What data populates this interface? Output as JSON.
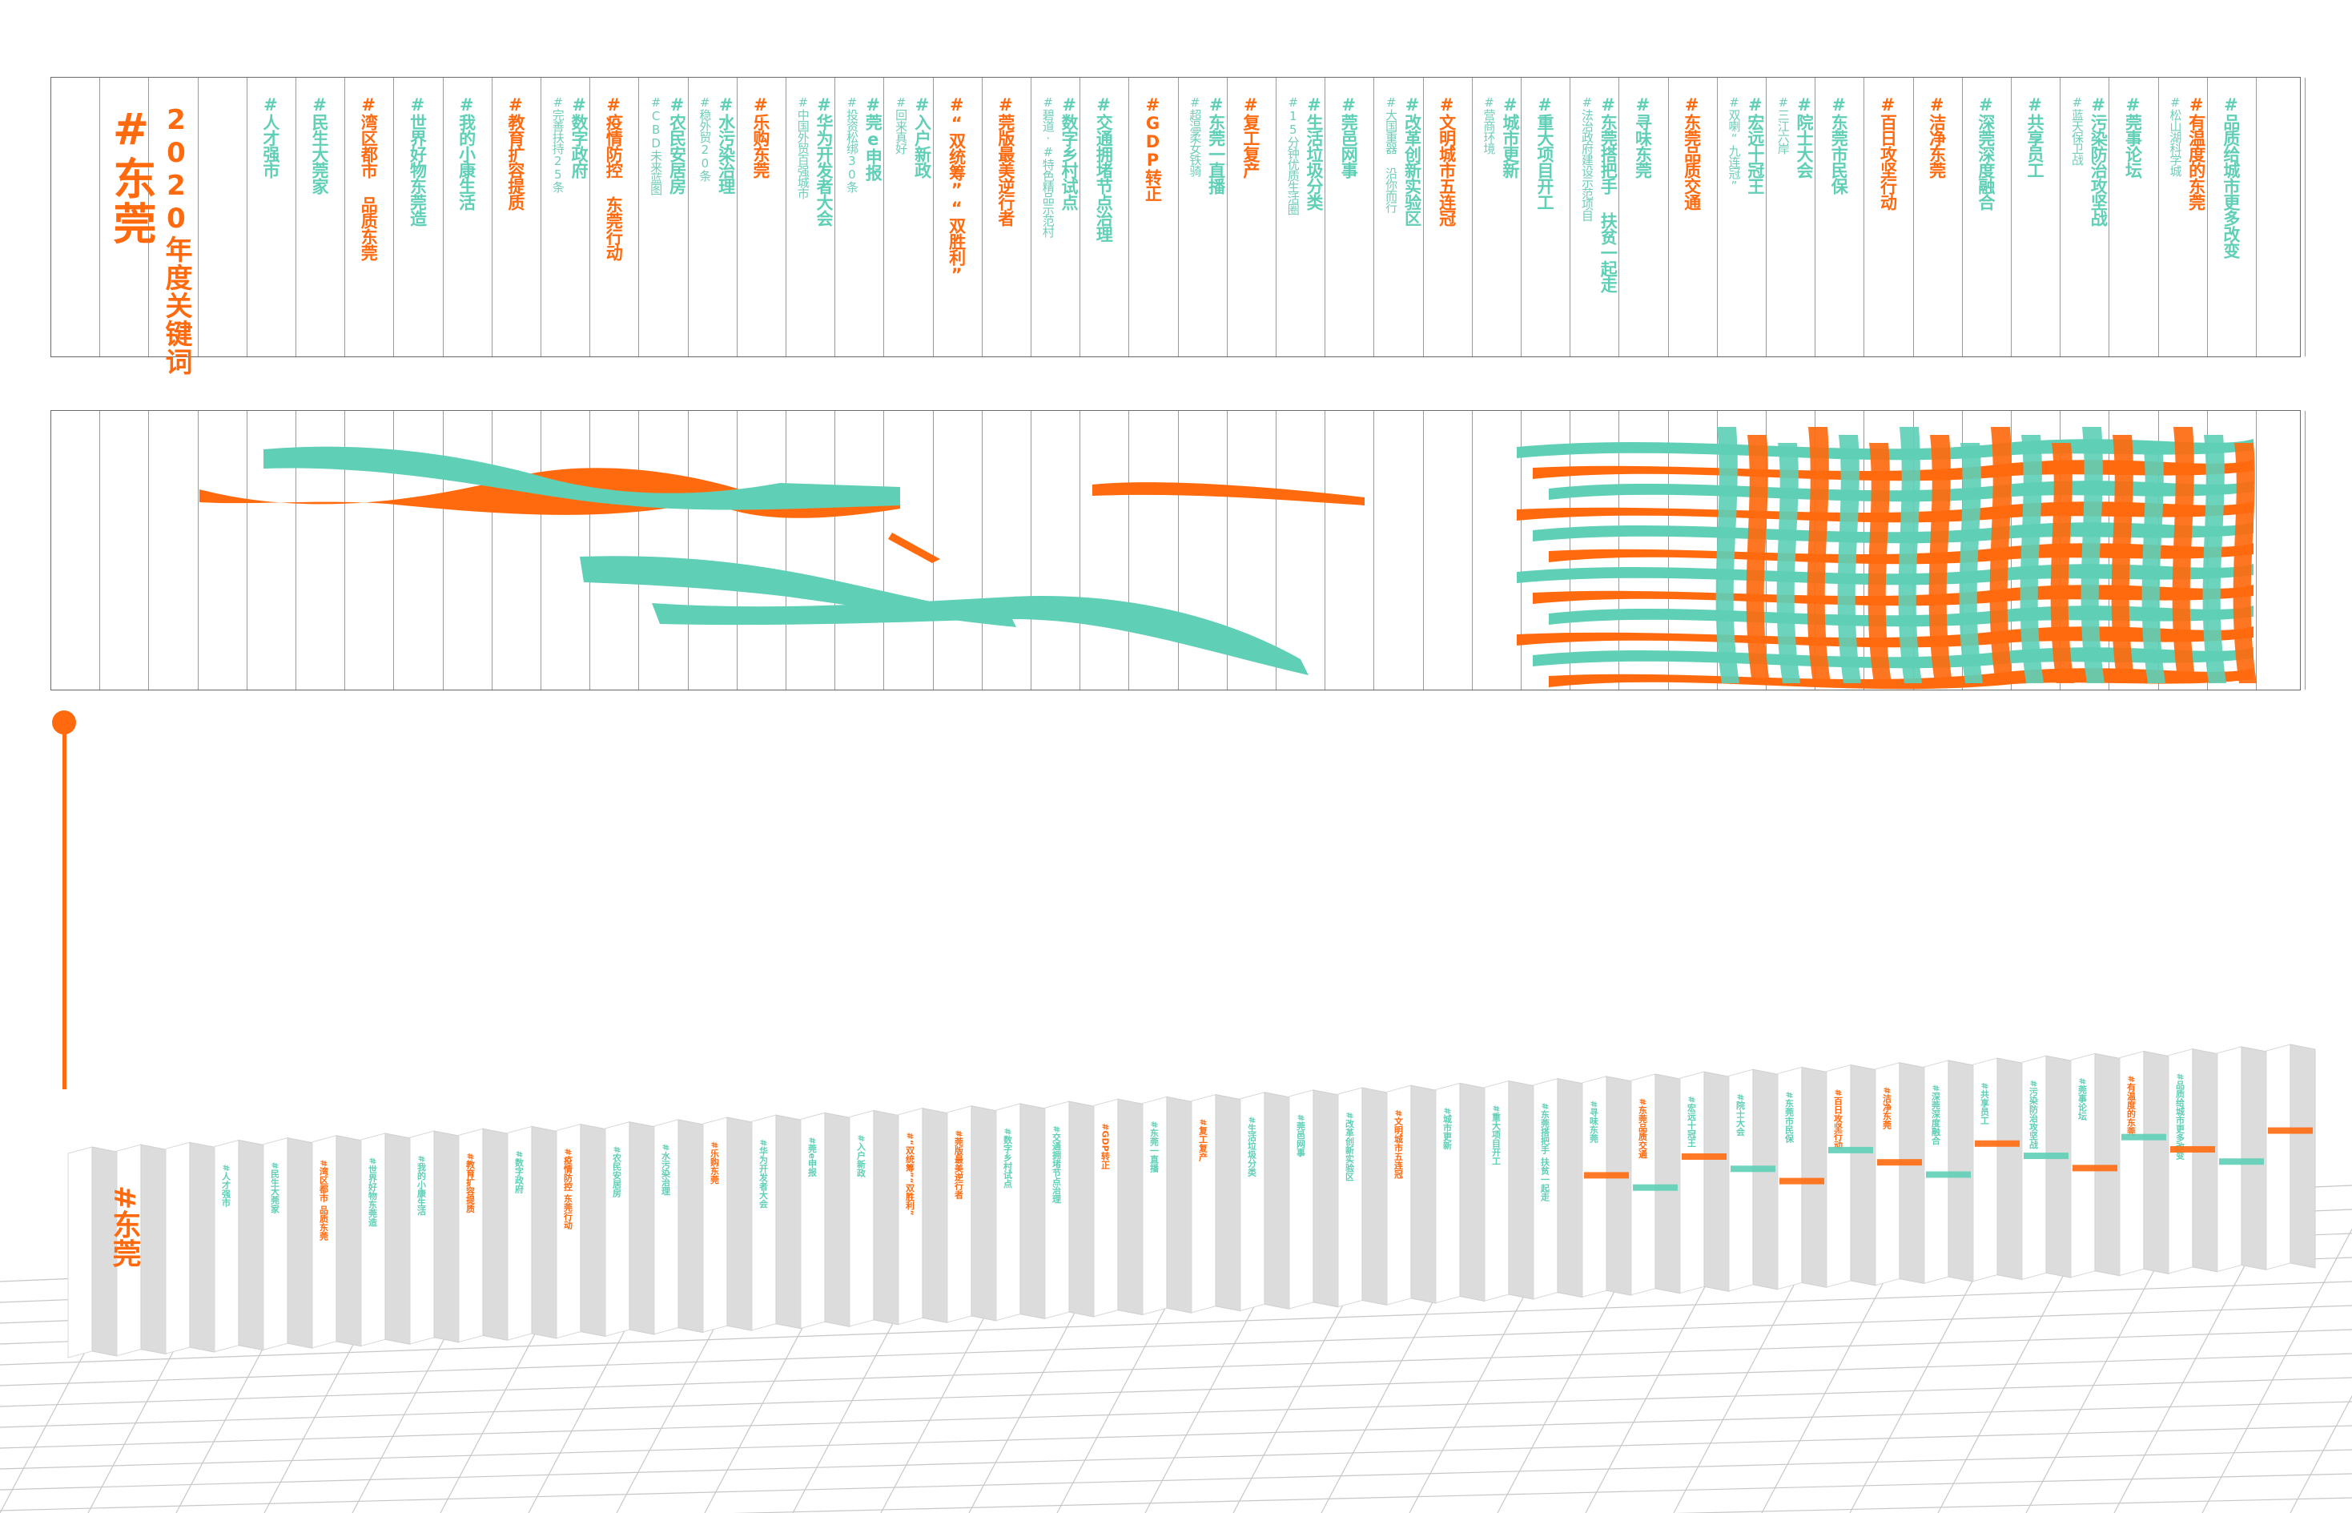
{
  "title": {
    "hash_word": "#东莞",
    "subtitle": "2020年度关键词"
  },
  "keywords": [
    {
      "text": "#人才强市",
      "color": "teal"
    },
    {
      "text": "#民生大莞家",
      "color": "teal"
    },
    {
      "text": "#湾区都市 品质东莞",
      "color": "orange"
    },
    {
      "text": "#世界好物东莞造",
      "color": "teal"
    },
    {
      "text": "#我的小康生活",
      "color": "teal"
    },
    {
      "text": "#教育扩容提质",
      "color": "orange"
    },
    {
      "text": "#数字政府",
      "color": "teal",
      "sub": "#完善扶持25条"
    },
    {
      "text": "#疫情防控 东莞行动",
      "color": "orange"
    },
    {
      "text": "#农民安居房",
      "color": "teal",
      "sub": "#CBD未来蓝图"
    },
    {
      "text": "#水污染治理",
      "color": "teal",
      "sub": "#稳外贸20条"
    },
    {
      "text": "#乐购东莞",
      "color": "orange"
    },
    {
      "text": "#华为开发者大会",
      "color": "teal",
      "sub": "#中国外贸百强城市"
    },
    {
      "text": "#莞e申报",
      "color": "teal",
      "sub": "#投资松绑30条"
    },
    {
      "text": "#入户新政",
      "color": "teal",
      "sub": "#回来真好"
    },
    {
      "text": "#“双统筹”“双胜利”",
      "color": "orange"
    },
    {
      "text": "#莞版最美逆行者",
      "color": "orange"
    },
    {
      "text": "#数字乡村试点",
      "color": "teal",
      "sub": "#碧道·#特色精品示范村"
    },
    {
      "text": "#交通拥堵节点治理",
      "color": "teal"
    },
    {
      "text": "#GDP转正",
      "color": "orange"
    },
    {
      "text": "#东莞一直播",
      "color": "teal",
      "sub": "#超温柔女铁骑"
    },
    {
      "text": "#复工复产",
      "color": "orange"
    },
    {
      "text": "#生活垃圾分类",
      "color": "teal",
      "sub": "#15分钟优质生活圈"
    },
    {
      "text": "#莞邑网事",
      "color": "teal"
    },
    {
      "text": "#改革创新实验区",
      "color": "teal",
      "sub": "#大国重器 沿你而行"
    },
    {
      "text": "#文明城市五连冠",
      "color": "orange"
    },
    {
      "text": "#城市更新",
      "color": "teal",
      "sub": "#营商环境"
    },
    {
      "text": "#重大项目开工",
      "color": "teal"
    },
    {
      "text": "#东莞搭把手 扶贫一起走",
      "color": "teal",
      "sub": "#法治政府建设示范项目"
    },
    {
      "text": "#寻味东莞",
      "color": "teal"
    },
    {
      "text": "#东莞品质交通",
      "color": "orange"
    },
    {
      "text": "#宏远十冠王",
      "color": "teal",
      "sub": "#双喇“九连冠”"
    },
    {
      "text": "#院士大会",
      "color": "teal",
      "sub": "#三江六岸"
    },
    {
      "text": "#东莞市民保",
      "color": "teal"
    },
    {
      "text": "#百日攻坚行动",
      "color": "orange"
    },
    {
      "text": "#洁净东莞",
      "color": "orange"
    },
    {
      "text": "#深莞深度融合",
      "color": "teal"
    },
    {
      "text": "#共享员工",
      "color": "teal"
    },
    {
      "text": "#污染防治攻坚战",
      "color": "teal",
      "sub": "#蓝天保卫战"
    },
    {
      "text": "#莞事论坛",
      "color": "teal"
    },
    {
      "text": "#有温度的东莞",
      "color": "orange",
      "sub": "#松山湖科学城"
    },
    {
      "text": "#品质给城市更多改变",
      "color": "teal"
    }
  ],
  "colors": {
    "orange": "#ff6a0f",
    "teal": "#5fcfb6",
    "border": "#6a6a6a"
  }
}
